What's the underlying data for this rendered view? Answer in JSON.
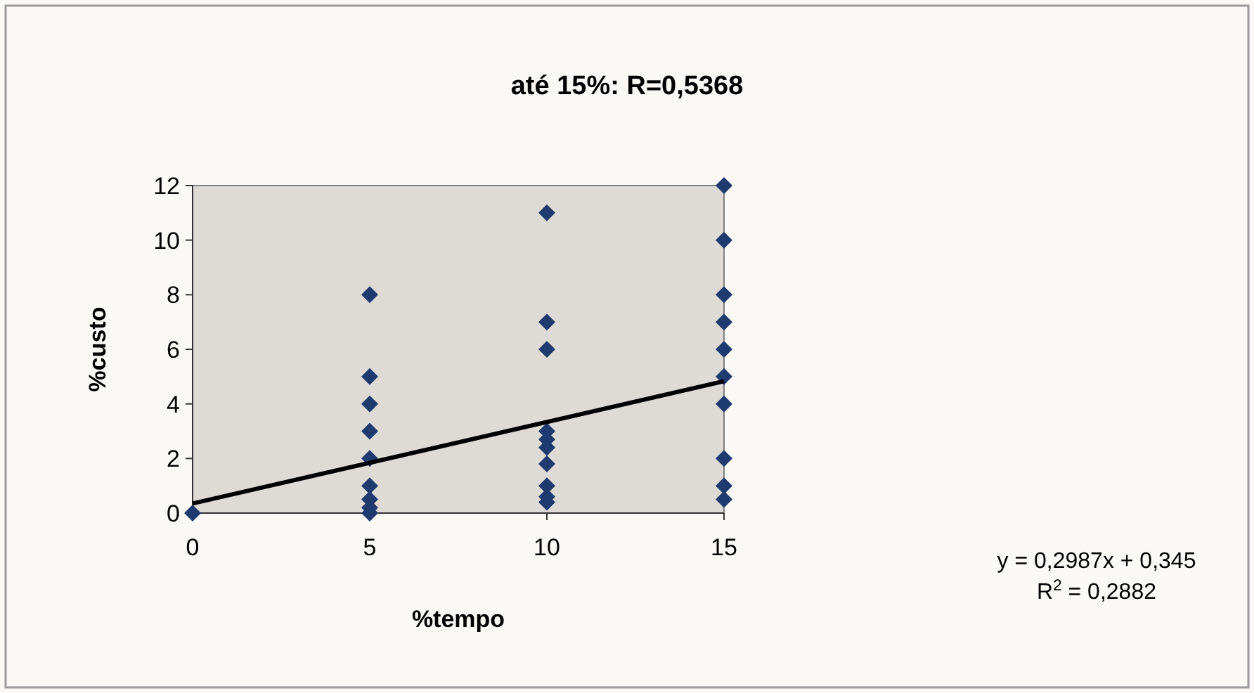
{
  "chart_data": {
    "type": "scatter",
    "title": "até 15%: R=0,5368",
    "xlabel": "%tempo",
    "ylabel": "%custo",
    "xlim": [
      0,
      15
    ],
    "xticks": [
      0,
      5,
      10,
      15
    ],
    "ylim": [
      0,
      12
    ],
    "yticks": [
      0,
      2,
      4,
      6,
      8,
      10,
      12
    ],
    "grid": false,
    "marker": "diamond",
    "series": [
      {
        "color": "#1f3a6e",
        "x": [
          0,
          5,
          5,
          5,
          5,
          5,
          5,
          5,
          5,
          5,
          10,
          10,
          10,
          10,
          10,
          10,
          10,
          10,
          10,
          10,
          15,
          15,
          15,
          15,
          15,
          15,
          15,
          15,
          15,
          15
        ],
        "values": [
          0,
          8,
          5,
          4,
          3,
          2,
          1,
          0.5,
          0.2,
          0,
          11,
          7,
          6,
          3,
          2.7,
          2.4,
          1.8,
          1,
          0.6,
          0.4,
          12,
          10,
          8,
          7,
          6,
          5,
          4,
          2,
          1,
          0.5
        ]
      },
      {
        "type": "line",
        "color": "#000000",
        "marker": "none",
        "x": [
          0,
          15
        ],
        "values": [
          0.35,
          4.83
        ]
      }
    ],
    "annotations": [
      "y = 0,2987x + 0,345",
      "R$^{2}$ = 0,2882"
    ]
  }
}
